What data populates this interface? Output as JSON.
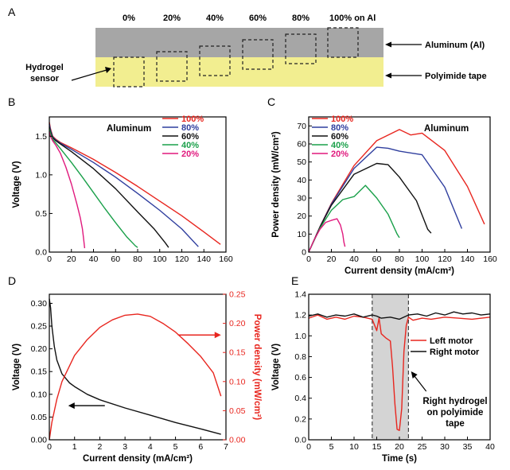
{
  "diagram": {
    "panel": "A",
    "percent_labels": [
      "0%",
      "20%",
      "40%",
      "60%",
      "80%",
      "100% on Al"
    ],
    "aluminum_label": "Aluminum (Al)",
    "polyimide_label": "Polyimide tape",
    "sensor_label_line1": "Hydrogel",
    "sensor_label_line2": "sensor",
    "colors": {
      "aluminum": "#a6a6a6",
      "polyimide": "#f2ee90"
    }
  },
  "chart_data": [
    {
      "panel": "B",
      "type": "line",
      "note": "Aluminum",
      "xlabel": "",
      "ylabel": "Voltage (V)",
      "xlim": [
        0,
        160
      ],
      "ylim": [
        0,
        1.75
      ],
      "xticks": [
        0,
        20,
        40,
        60,
        80,
        100,
        120,
        140,
        160
      ],
      "yticks": [
        0.0,
        0.5,
        1.0,
        1.5
      ],
      "legend_position": "top-right",
      "series": [
        {
          "name": "100%",
          "color": "#e8261f",
          "x": [
            0,
            1,
            3,
            6,
            10,
            20,
            40,
            60,
            80,
            100,
            120,
            140,
            155
          ],
          "y": [
            1.68,
            1.6,
            1.5,
            1.46,
            1.42,
            1.35,
            1.2,
            1.03,
            0.85,
            0.66,
            0.47,
            0.26,
            0.1
          ]
        },
        {
          "name": "80%",
          "color": "#2f3e9e",
          "x": [
            0,
            1,
            3,
            6,
            10,
            20,
            40,
            60,
            80,
            100,
            120,
            135
          ],
          "y": [
            1.66,
            1.58,
            1.49,
            1.45,
            1.41,
            1.33,
            1.16,
            0.97,
            0.76,
            0.54,
            0.3,
            0.07
          ]
        },
        {
          "name": "60%",
          "color": "#111111",
          "x": [
            0,
            1,
            3,
            6,
            10,
            20,
            40,
            60,
            80,
            95,
            105,
            108
          ],
          "y": [
            1.62,
            1.56,
            1.48,
            1.44,
            1.4,
            1.3,
            1.08,
            0.82,
            0.52,
            0.3,
            0.12,
            0.06
          ]
        },
        {
          "name": "40%",
          "color": "#1aa04a",
          "x": [
            0,
            1,
            3,
            6,
            10,
            20,
            30,
            40,
            50,
            60,
            70,
            78,
            80
          ],
          "y": [
            1.6,
            1.54,
            1.46,
            1.41,
            1.34,
            1.16,
            0.97,
            0.77,
            0.57,
            0.38,
            0.2,
            0.08,
            0.06
          ]
        },
        {
          "name": "20%",
          "color": "#e0197d",
          "x": [
            0,
            1,
            3,
            6,
            10,
            15,
            20,
            25,
            28,
            30,
            31,
            32
          ],
          "y": [
            1.56,
            1.5,
            1.44,
            1.38,
            1.28,
            1.1,
            0.88,
            0.62,
            0.45,
            0.3,
            0.18,
            0.05
          ]
        }
      ]
    },
    {
      "panel": "C",
      "type": "line",
      "note": "Aluminum",
      "xlabel": "Current density (mA/cm²)",
      "ylabel": "Power density (mW/cm²)",
      "xlim": [
        0,
        160
      ],
      "ylim": [
        0,
        75
      ],
      "xticks": [
        0,
        20,
        40,
        60,
        80,
        100,
        120,
        140,
        160
      ],
      "yticks": [
        0,
        10,
        20,
        30,
        40,
        50,
        60,
        70
      ],
      "legend_position": "top-left",
      "series": [
        {
          "name": "100%",
          "color": "#e8261f",
          "x": [
            0,
            10,
            20,
            40,
            60,
            80,
            90,
            100,
            120,
            140,
            155
          ],
          "y": [
            0,
            14.2,
            27,
            48,
            61.8,
            68,
            65,
            66,
            56.4,
            36.4,
            15.5
          ]
        },
        {
          "name": "80%",
          "color": "#2f3e9e",
          "x": [
            0,
            10,
            20,
            40,
            60,
            70,
            80,
            100,
            120,
            135
          ],
          "y": [
            0,
            14.1,
            26.6,
            46.4,
            58.2,
            57.6,
            56,
            54,
            36,
            13
          ]
        },
        {
          "name": "60%",
          "color": "#111111",
          "x": [
            0,
            10,
            20,
            40,
            60,
            70,
            80,
            95,
            105,
            108
          ],
          "y": [
            0,
            14,
            26,
            43.2,
            49.2,
            48.5,
            41.6,
            28.5,
            12.6,
            10.5
          ]
        },
        {
          "name": "40%",
          "color": "#1aa04a",
          "x": [
            0,
            10,
            20,
            30,
            40,
            50,
            60,
            70,
            78,
            80
          ],
          "y": [
            0,
            13.4,
            23.2,
            29.1,
            30.8,
            37,
            30,
            21,
            10,
            8
          ]
        },
        {
          "name": "20%",
          "color": "#e0197d",
          "x": [
            0,
            5,
            10,
            15,
            20,
            25,
            28,
            30,
            31,
            32
          ],
          "y": [
            0,
            7,
            12.8,
            16.5,
            17.6,
            18.5,
            15,
            10,
            5.6,
            3
          ]
        }
      ]
    },
    {
      "panel": "D",
      "type": "line",
      "xlabel": "Current density (mA/cm²)",
      "ylabel": "Voltage (V)",
      "y2label": "Power density (mW/cm²)",
      "xlim": [
        0,
        7
      ],
      "ylim": [
        0,
        0.32
      ],
      "y2lim": [
        0,
        0.25
      ],
      "xticks": [
        0,
        1,
        2,
        3,
        4,
        5,
        6,
        7
      ],
      "yticks": [
        0.0,
        0.05,
        0.1,
        0.15,
        0.2,
        0.25,
        0.3
      ],
      "y2ticks": [
        0.0,
        0.05,
        0.1,
        0.15,
        0.2,
        0.25
      ],
      "y2_color": "#e8261f",
      "series": [
        {
          "name": "",
          "axis": "left",
          "color": "#111111",
          "x": [
            0,
            0.05,
            0.1,
            0.2,
            0.3,
            0.5,
            0.8,
            1.0,
            1.5,
            2,
            3,
            4,
            5,
            6,
            6.8
          ],
          "y": [
            0.31,
            0.29,
            0.25,
            0.205,
            0.175,
            0.145,
            0.125,
            0.117,
            0.1,
            0.088,
            0.07,
            0.054,
            0.038,
            0.024,
            0.012
          ]
        },
        {
          "name": "",
          "axis": "right",
          "color": "#e8261f",
          "x": [
            0,
            0.1,
            0.3,
            0.5,
            1,
            1.5,
            2,
            2.5,
            3,
            3.5,
            4,
            4.5,
            5,
            5.5,
            6,
            6.5,
            6.8
          ],
          "y": [
            0,
            0.03,
            0.07,
            0.1,
            0.145,
            0.172,
            0.193,
            0.206,
            0.214,
            0.216,
            0.212,
            0.2,
            0.185,
            0.165,
            0.143,
            0.115,
            0.075
          ]
        }
      ]
    },
    {
      "panel": "E",
      "type": "line",
      "xlabel": "Time (s)",
      "ylabel": "Voltage (V)",
      "xlim": [
        0,
        40
      ],
      "ylim": [
        0,
        1.4
      ],
      "xticks": [
        0,
        5,
        10,
        15,
        20,
        25,
        30,
        35,
        40
      ],
      "yticks": [
        0.0,
        0.2,
        0.4,
        0.6,
        0.8,
        1.0,
        1.2,
        1.4
      ],
      "shaded_region": [
        14,
        22
      ],
      "annotation_line1": "Right hydrogel",
      "annotation_line2": "on polyimide",
      "annotation_line3": "tape",
      "legend_position": "right",
      "series": [
        {
          "name": "Left motor",
          "color": "#e8261f",
          "x": [
            0,
            2,
            4,
            6,
            8,
            10,
            12,
            14,
            15,
            15.5,
            16,
            17,
            18,
            18.5,
            19,
            19.5,
            20,
            20.5,
            21,
            21.5,
            22,
            23,
            25,
            27,
            30,
            33,
            36,
            40
          ],
          "y": [
            1.17,
            1.2,
            1.16,
            1.18,
            1.16,
            1.19,
            1.18,
            1.16,
            1.05,
            1.17,
            1.02,
            0.98,
            0.95,
            0.7,
            0.35,
            0.1,
            0.09,
            0.3,
            0.85,
            1.1,
            1.18,
            1.15,
            1.17,
            1.16,
            1.18,
            1.17,
            1.16,
            1.18
          ]
        },
        {
          "name": "Right motor",
          "color": "#111111",
          "x": [
            0,
            2,
            4,
            6,
            8,
            10,
            12,
            14,
            15,
            16,
            18,
            20,
            22,
            24,
            26,
            28,
            30,
            32,
            34,
            36,
            38,
            40
          ],
          "y": [
            1.19,
            1.21,
            1.18,
            1.2,
            1.19,
            1.21,
            1.18,
            1.2,
            1.19,
            1.17,
            1.18,
            1.16,
            1.2,
            1.21,
            1.19,
            1.22,
            1.2,
            1.23,
            1.21,
            1.22,
            1.2,
            1.21
          ]
        }
      ]
    }
  ]
}
